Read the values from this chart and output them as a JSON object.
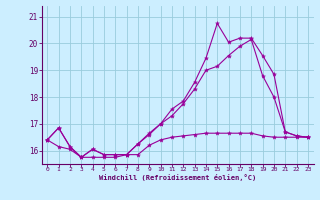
{
  "xlabel": "Windchill (Refroidissement éolien,°C)",
  "bg_color": "#cceeff",
  "grid_color": "#99ccdd",
  "line_color": "#990099",
  "xlim": [
    -0.5,
    23.5
  ],
  "ylim": [
    15.5,
    21.4
  ],
  "yticks": [
    16,
    17,
    18,
    19,
    20,
    21
  ],
  "xticks": [
    0,
    1,
    2,
    3,
    4,
    5,
    6,
    7,
    8,
    9,
    10,
    11,
    12,
    13,
    14,
    15,
    16,
    17,
    18,
    19,
    20,
    21,
    22,
    23
  ],
  "line1_x": [
    0,
    1,
    2,
    3,
    4,
    5,
    6,
    7,
    8,
    9,
    10,
    11,
    12,
    13,
    14,
    15,
    16,
    17,
    18,
    19,
    20,
    21,
    22,
    23
  ],
  "line1_y": [
    16.4,
    16.85,
    16.15,
    15.75,
    16.05,
    15.85,
    15.85,
    15.85,
    16.25,
    16.65,
    17.0,
    17.55,
    17.85,
    18.55,
    19.45,
    20.75,
    20.05,
    20.2,
    20.2,
    19.55,
    18.85,
    16.7,
    16.55,
    16.5
  ],
  "line2_x": [
    0,
    1,
    2,
    3,
    4,
    5,
    6,
    7,
    8,
    9,
    10,
    11,
    12,
    13,
    14,
    15,
    16,
    17,
    18,
    19,
    20,
    21,
    22,
    23
  ],
  "line2_y": [
    16.4,
    16.85,
    16.15,
    15.75,
    16.05,
    15.85,
    15.85,
    15.85,
    16.25,
    16.6,
    17.0,
    17.3,
    17.75,
    18.3,
    19.0,
    19.15,
    19.55,
    19.9,
    20.15,
    18.8,
    18.0,
    16.7,
    16.55,
    16.5
  ],
  "line3_x": [
    0,
    1,
    2,
    3,
    4,
    5,
    6,
    7,
    8,
    9,
    10,
    11,
    12,
    13,
    14,
    15,
    16,
    17,
    18,
    19,
    20,
    21,
    22,
    23
  ],
  "line3_y": [
    16.4,
    16.15,
    16.05,
    15.75,
    15.75,
    15.75,
    15.75,
    15.85,
    15.85,
    16.2,
    16.4,
    16.5,
    16.55,
    16.6,
    16.65,
    16.65,
    16.65,
    16.65,
    16.65,
    16.55,
    16.5,
    16.5,
    16.5,
    16.5
  ]
}
